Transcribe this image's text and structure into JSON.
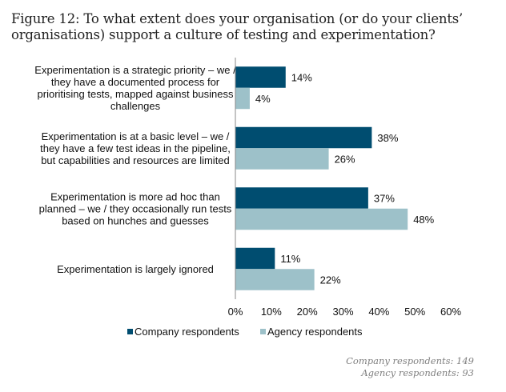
{
  "chart_data": {
    "type": "bar",
    "orientation": "horizontal",
    "title": "Figure 12: To what extent does your organisation (or do your clients’ organisations) support a culture of testing and experimentation?",
    "categories": [
      [
        "Experimentation is a strategic priority – we /",
        "they have a documented process for",
        "prioritising tests, mapped against business",
        "challenges"
      ],
      [
        "Experimentation is at a basic level – we /",
        "they have a few test ideas in the pipeline,",
        "but capabilities and resources are limited"
      ],
      [
        "Experimentation is more ad hoc than",
        "planned – we / they occasionally run tests",
        "based on hunches and guesses"
      ],
      [
        "Experimentation is largely ignored"
      ]
    ],
    "series": [
      {
        "name": "Company respondents",
        "color": "#004d70",
        "values": [
          14,
          38,
          37,
          11
        ]
      },
      {
        "name": "Agency respondents",
        "color": "#9dc1c9",
        "values": [
          4,
          26,
          48,
          22
        ]
      }
    ],
    "xlim": [
      0,
      60
    ],
    "xticks": [
      0,
      10,
      20,
      30,
      40,
      50,
      60
    ],
    "xtick_labels": [
      "0%",
      "10%",
      "20%",
      "30%",
      "40%",
      "50%",
      "60%"
    ],
    "value_suffix": "%",
    "xlabel": "",
    "ylabel": "",
    "grid": false,
    "legend_position": "bottom-left"
  },
  "footnotes": [
    "Company respondents: 149",
    "Agency respondents: 93"
  ]
}
